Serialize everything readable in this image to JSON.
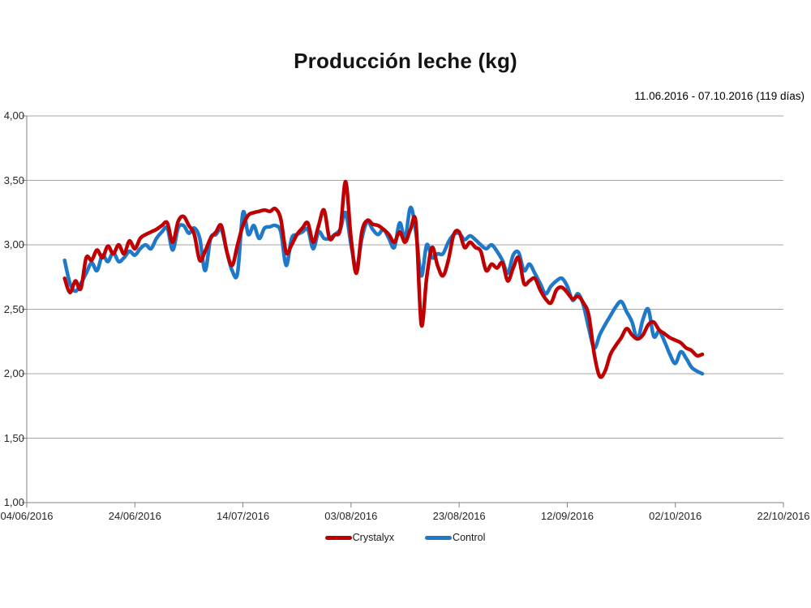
{
  "chart_data": {
    "type": "line",
    "title": "Producción leche (kg)",
    "subtitle": "11.06.2016 - 07.10.2016 (119 días)",
    "ylabel": "",
    "xlabel": "",
    "ylim": [
      1.0,
      4.0
    ],
    "x_total_days": 140,
    "data_start_day": 7,
    "grid": "horizontal",
    "legend_position": "bottom-center",
    "axis_color": "#808080",
    "gridline_color": "#a6a6a6",
    "y_ticks": [
      {
        "value": 4.0,
        "label": "4,00"
      },
      {
        "value": 3.5,
        "label": "3,50"
      },
      {
        "value": 3.0,
        "label": "3,00"
      },
      {
        "value": 2.5,
        "label": "2,50"
      },
      {
        "value": 2.0,
        "label": "2,00"
      },
      {
        "value": 1.5,
        "label": "1,50"
      },
      {
        "value": 1.0,
        "label": "1,00"
      }
    ],
    "x_ticks": [
      {
        "day": 0,
        "label": "04/06/2016"
      },
      {
        "day": 20,
        "label": "24/06/2016"
      },
      {
        "day": 40,
        "label": "14/07/2016"
      },
      {
        "day": 60,
        "label": "03/08/2016"
      },
      {
        "day": 80,
        "label": "23/08/2016"
      },
      {
        "day": 100,
        "label": "12/09/2016"
      },
      {
        "day": 120,
        "label": "02/10/2016"
      },
      {
        "day": 140,
        "label": "22/10/2016"
      }
    ],
    "series": [
      {
        "name": "Crystalyx",
        "color": "#c00000",
        "values": [
          2.74,
          2.63,
          2.72,
          2.66,
          2.9,
          2.88,
          2.96,
          2.9,
          2.99,
          2.93,
          3.0,
          2.93,
          3.03,
          2.97,
          3.05,
          3.08,
          3.1,
          3.12,
          3.15,
          3.17,
          3.02,
          3.18,
          3.22,
          3.15,
          3.08,
          2.88,
          2.95,
          3.05,
          3.1,
          3.15,
          2.95,
          2.84,
          3.0,
          3.15,
          3.23,
          3.25,
          3.26,
          3.27,
          3.26,
          3.28,
          3.2,
          2.94,
          3.0,
          3.08,
          3.13,
          3.17,
          3.02,
          3.15,
          3.27,
          3.05,
          3.08,
          3.12,
          3.49,
          3.05,
          2.78,
          3.1,
          3.19,
          3.16,
          3.15,
          3.12,
          3.08,
          3.02,
          3.1,
          3.02,
          3.12,
          3.17,
          2.38,
          2.75,
          2.98,
          2.84,
          2.76,
          2.88,
          3.08,
          3.1,
          2.98,
          3.02,
          2.98,
          2.95,
          2.8,
          2.85,
          2.82,
          2.86,
          2.72,
          2.82,
          2.9,
          2.7,
          2.72,
          2.74,
          2.65,
          2.58,
          2.55,
          2.65,
          2.67,
          2.63,
          2.58,
          2.6,
          2.55,
          2.45,
          2.15,
          1.98,
          2.02,
          2.15,
          2.22,
          2.28,
          2.35,
          2.3,
          2.27,
          2.3,
          2.38,
          2.4,
          2.34,
          2.31,
          2.28,
          2.26,
          2.24,
          2.2,
          2.18,
          2.14,
          2.15
        ]
      },
      {
        "name": "Control",
        "color": "#1f78c8",
        "values": [
          2.88,
          2.7,
          2.64,
          2.7,
          2.78,
          2.86,
          2.8,
          2.92,
          2.87,
          2.94,
          2.87,
          2.9,
          2.95,
          2.92,
          2.97,
          3.0,
          2.97,
          3.05,
          3.1,
          3.13,
          2.96,
          3.13,
          3.15,
          3.09,
          3.13,
          3.05,
          2.8,
          3.05,
          3.08,
          3.12,
          2.95,
          2.8,
          2.78,
          3.25,
          3.08,
          3.15,
          3.05,
          3.13,
          3.14,
          3.15,
          3.1,
          2.84,
          3.05,
          3.08,
          3.1,
          3.12,
          2.97,
          3.1,
          3.05,
          3.05,
          3.08,
          3.12,
          3.25,
          3.0,
          2.82,
          3.05,
          3.18,
          3.12,
          3.08,
          3.12,
          3.05,
          2.98,
          3.17,
          3.05,
          3.29,
          3.1,
          2.76,
          3.0,
          2.9,
          2.93,
          2.93,
          3.02,
          3.08,
          3.09,
          3.04,
          3.07,
          3.04,
          3.0,
          2.97,
          3.0,
          2.95,
          2.88,
          2.78,
          2.92,
          2.94,
          2.8,
          2.85,
          2.78,
          2.7,
          2.62,
          2.68,
          2.72,
          2.74,
          2.68,
          2.57,
          2.62,
          2.53,
          2.35,
          2.2,
          2.3,
          2.38,
          2.45,
          2.52,
          2.56,
          2.48,
          2.4,
          2.27,
          2.42,
          2.5,
          2.29,
          2.33,
          2.25,
          2.15,
          2.08,
          2.17,
          2.12,
          2.05,
          2.02,
          2.0
        ]
      }
    ]
  }
}
